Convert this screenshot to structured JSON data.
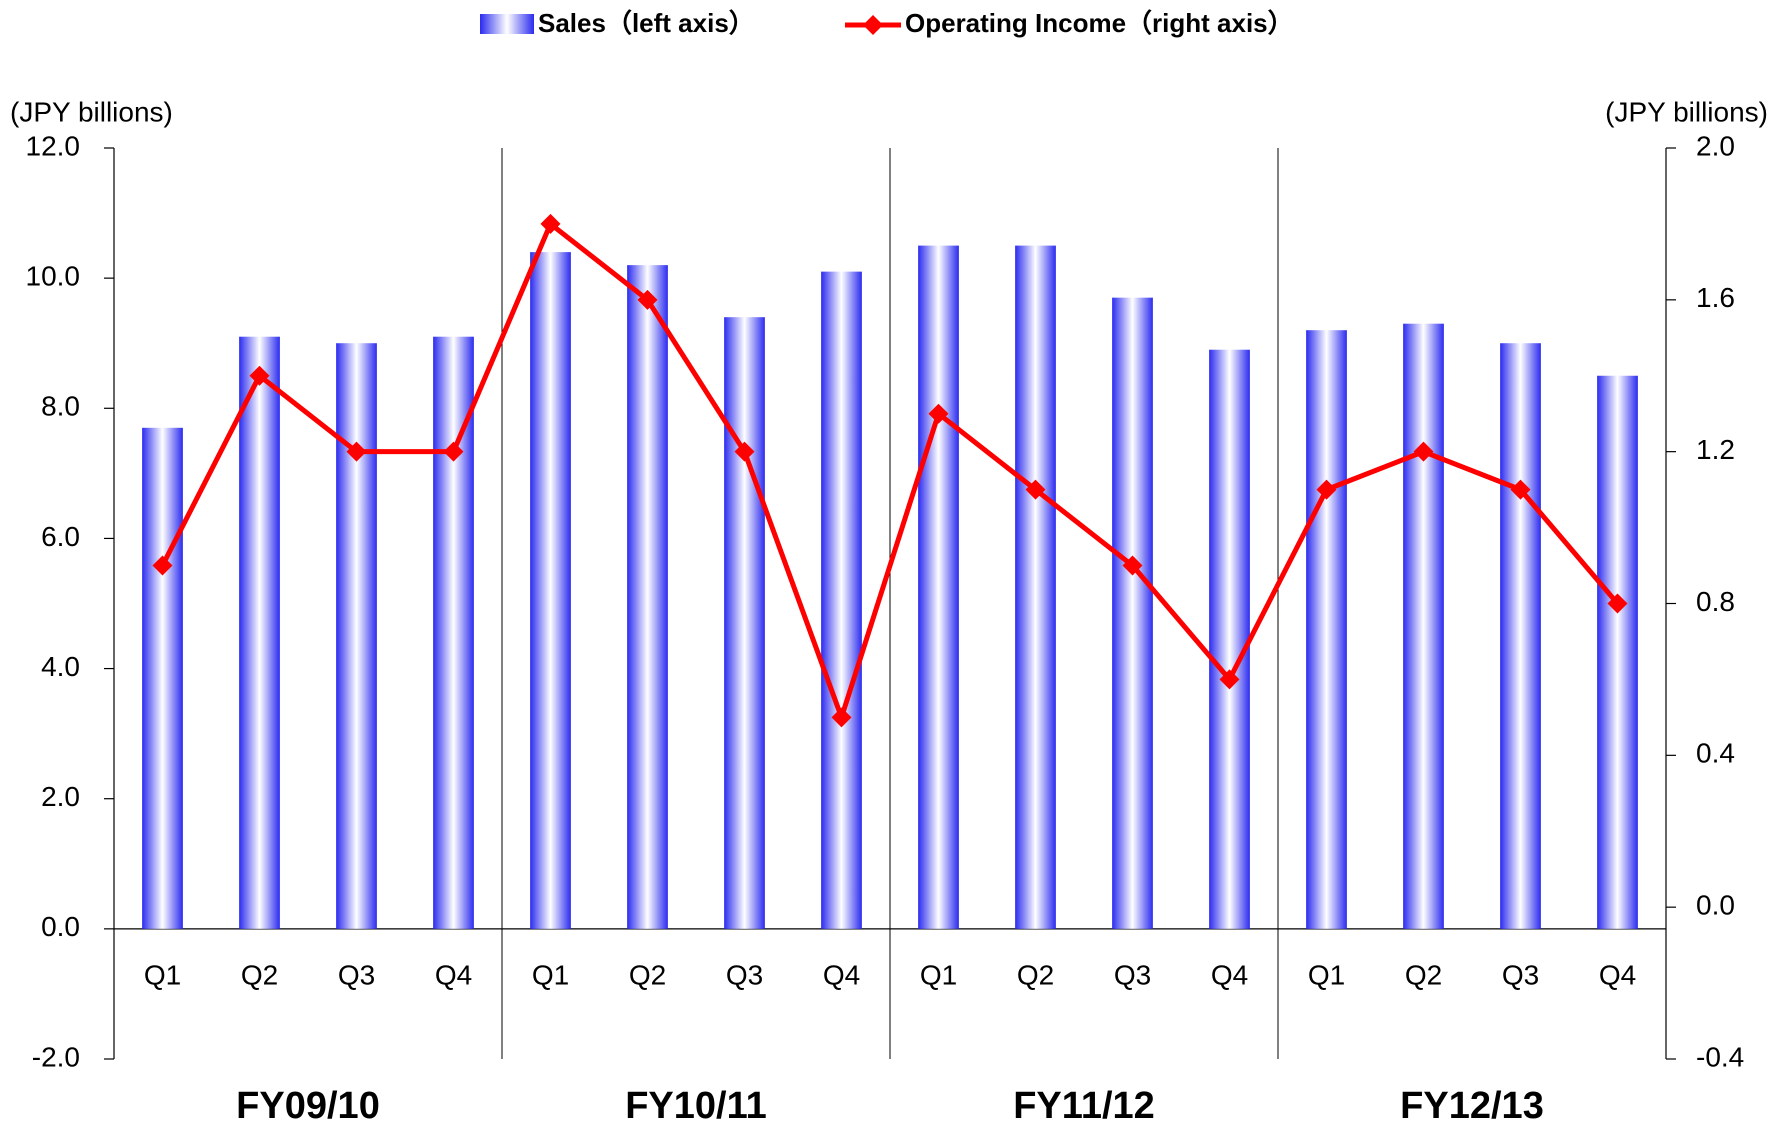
{
  "chart_data": {
    "type": "bar-line",
    "categories": [
      "Q1",
      "Q2",
      "Q3",
      "Q4",
      "Q1",
      "Q2",
      "Q3",
      "Q4",
      "Q1",
      "Q2",
      "Q3",
      "Q4",
      "Q1",
      "Q2",
      "Q3",
      "Q4"
    ],
    "groups": [
      "FY09/10",
      "FY10/11",
      "FY11/12",
      "FY12/13"
    ],
    "series": [
      {
        "name": "Sales（left axis）",
        "color": "#2b2bf0",
        "type": "bar",
        "values": [
          7.7,
          9.1,
          9.0,
          9.1,
          10.4,
          10.2,
          9.4,
          10.1,
          10.5,
          10.5,
          9.7,
          8.9,
          9.2,
          9.3,
          9.0,
          8.5
        ]
      },
      {
        "name": "Operating Income（right axis）",
        "color": "#ff0000",
        "type": "line",
        "axis": "y2",
        "values": [
          0.9,
          1.4,
          1.2,
          1.2,
          1.8,
          1.6,
          1.2,
          0.5,
          1.3,
          1.1,
          0.9,
          0.6,
          1.1,
          1.2,
          1.1,
          0.8
        ]
      }
    ],
    "y_label": "(JPY billions)",
    "y2_label": "(JPY billions)",
    "ylim": [
      -2,
      12
    ],
    "yticks": [
      {
        "value": -2,
        "label": "-2.0"
      },
      {
        "value": 0,
        "label": "0.0"
      },
      {
        "value": 2,
        "label": "2.0"
      },
      {
        "value": 4,
        "label": "4.0"
      },
      {
        "value": 6,
        "label": "6.0"
      },
      {
        "value": 8,
        "label": "8.0"
      },
      {
        "value": 10,
        "label": "10.0"
      },
      {
        "value": 12,
        "label": "12.0"
      }
    ],
    "y2lim": [
      -0.4,
      2.0
    ],
    "y2ticks": [
      {
        "value": -0.4,
        "label": "-0.4"
      },
      {
        "value": 0,
        "label": "0.0"
      },
      {
        "value": 0.4,
        "label": "0.4"
      },
      {
        "value": 0.8,
        "label": "0.8"
      },
      {
        "value": 1.2,
        "label": "1.2"
      },
      {
        "value": 1.6,
        "label": "1.6"
      },
      {
        "value": 2.0,
        "label": "2.0"
      }
    ]
  }
}
